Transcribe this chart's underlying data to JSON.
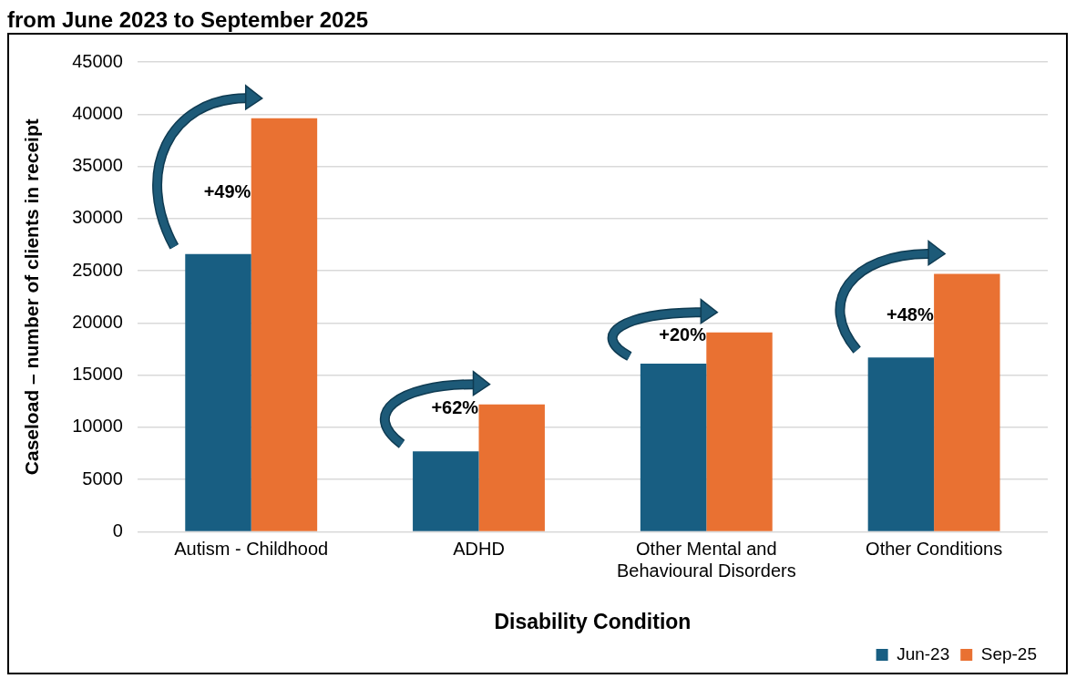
{
  "chart_data": {
    "type": "bar",
    "title": "from June 2023 to September 2025",
    "xlabel": "Disability Condition",
    "ylabel": "Caseload – number of clients in receipt",
    "categories": [
      "Autism - Childhood",
      "ADHD",
      "Other Mental and Behavioural Disorders",
      "Other Conditions"
    ],
    "series": [
      {
        "name": "Jun-23",
        "color": "#185e82",
        "values": [
          26600,
          7700,
          16100,
          16700
        ]
      },
      {
        "name": "Sep-25",
        "color": "#e97132",
        "values": [
          39600,
          12200,
          19100,
          24700
        ]
      }
    ],
    "ylim": [
      0,
      45000
    ],
    "yticks": [
      0,
      5000,
      10000,
      15000,
      20000,
      25000,
      30000,
      35000,
      40000,
      45000
    ],
    "grid": "y",
    "legend": "bottom right",
    "annotations": [
      {
        "text": "+49%",
        "x": "Autism - Childhood",
        "y": 32500
      },
      {
        "text": "+62%",
        "x": "ADHD",
        "y": 11800
      },
      {
        "text": "+20%",
        "x": "Other Mental and Behavioural Disorders",
        "y": 18800
      },
      {
        "text": "+48%",
        "x": "Other Conditions",
        "y": 20700
      }
    ]
  }
}
